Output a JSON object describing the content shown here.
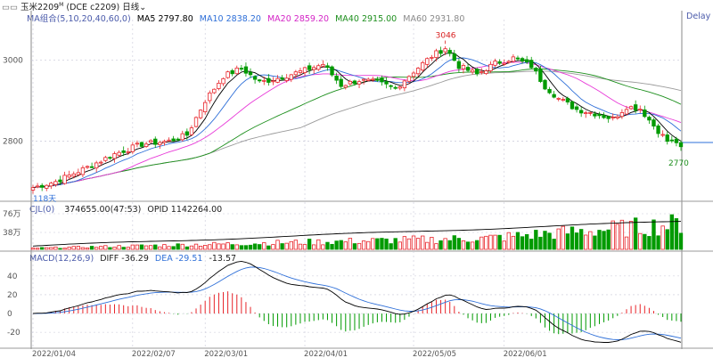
{
  "window": {
    "symbol_label": "玉米2209",
    "symbol_sup": "M",
    "symbol_code": "(DCE c2209)",
    "period_label": "日线",
    "delay_label": "Delay"
  },
  "colors": {
    "up": "#e8242a",
    "down": "#009a00",
    "ma5": "#000000",
    "ma10": "#2e6fd8",
    "ma20": "#e83ad8",
    "ma40": "#1d8f1d",
    "ma60": "#9a9a9a",
    "diff": "#000000",
    "dea": "#2e6fd8",
    "oi": "#000000",
    "grid": "#c8c8d8",
    "axis_text": "#555555"
  },
  "ma_header": {
    "title": "MA组合(5,10,20,40,60,0)",
    "items": [
      {
        "label": "MA5",
        "value": "2797.80"
      },
      {
        "label": "MA10",
        "value": "2838.20"
      },
      {
        "label": "MA20",
        "value": "2859.20"
      },
      {
        "label": "MA40",
        "value": "2915.00"
      },
      {
        "label": "MA60",
        "value": "2931.80"
      }
    ]
  },
  "vol_header": {
    "title": "CJL(0)",
    "volume": "374655.00(47:53)",
    "opid_label": "OPID",
    "opid_value": "1142264.00"
  },
  "macd_header": {
    "title": "MACD(12,26,9)",
    "diff_label": "DIFF",
    "diff_value": "-36.29",
    "dea_label": "DEA",
    "dea_value": "-29.51",
    "macd_value": "-13.57"
  },
  "annotations": {
    "high_label": "3046",
    "low_label": "2770",
    "left_label": "118天"
  },
  "chart_data": [
    {
      "type": "candlestick",
      "title": "",
      "y_ticks": [
        "3000",
        "2800"
      ],
      "ylim": [
        2660,
        3100
      ],
      "x_ticks": [
        "2022/01/04",
        "2022/02/07",
        "2022/03/01",
        "2022/04/01",
        "2022/05/05",
        "2022/06/01"
      ],
      "anchors": [
        {
          "i": 0,
          "p": 2685
        },
        {
          "i": 5,
          "p": 2700
        },
        {
          "i": 12,
          "p": 2735
        },
        {
          "i": 18,
          "p": 2768
        },
        {
          "i": 24,
          "p": 2792
        },
        {
          "i": 30,
          "p": 2800
        },
        {
          "i": 34,
          "p": 2815
        },
        {
          "i": 38,
          "p": 2900
        },
        {
          "i": 42,
          "p": 2960
        },
        {
          "i": 46,
          "p": 2980
        },
        {
          "i": 50,
          "p": 2945
        },
        {
          "i": 54,
          "p": 2955
        },
        {
          "i": 60,
          "p": 2975
        },
        {
          "i": 64,
          "p": 2990
        },
        {
          "i": 68,
          "p": 2938
        },
        {
          "i": 72,
          "p": 2950
        },
        {
          "i": 76,
          "p": 2945
        },
        {
          "i": 80,
          "p": 2930
        },
        {
          "i": 84,
          "p": 2972
        },
        {
          "i": 88,
          "p": 3010
        },
        {
          "i": 91,
          "p": 3030
        },
        {
          "i": 94,
          "p": 2985
        },
        {
          "i": 98,
          "p": 2965
        },
        {
          "i": 102,
          "p": 2992
        },
        {
          "i": 106,
          "p": 3005
        },
        {
          "i": 110,
          "p": 2985
        },
        {
          "i": 113,
          "p": 2935
        },
        {
          "i": 116,
          "p": 2905
        },
        {
          "i": 120,
          "p": 2878
        },
        {
          "i": 124,
          "p": 2868
        },
        {
          "i": 128,
          "p": 2855
        },
        {
          "i": 131,
          "p": 2885
        },
        {
          "i": 134,
          "p": 2880
        },
        {
          "i": 137,
          "p": 2838
        },
        {
          "i": 140,
          "p": 2800
        },
        {
          "i": 142,
          "p": 2798
        },
        {
          "i": 143,
          "p": 2780
        }
      ],
      "bar_count": 144,
      "series": [
        {
          "name": "MA5"
        },
        {
          "name": "MA10"
        },
        {
          "name": "MA20"
        },
        {
          "name": "MA40"
        },
        {
          "name": "MA60"
        }
      ]
    },
    {
      "type": "bar",
      "title": "",
      "y_ticks": [
        "76万",
        "38万"
      ],
      "ylim": [
        0,
        760000
      ],
      "series": [
        {
          "name": "CJL"
        },
        {
          "name": "OPID",
          "values_note": ""
        }
      ]
    },
    {
      "type": "bar",
      "title": "",
      "y_ticks": [
        "40",
        "20",
        "0",
        "-20"
      ],
      "ylim": [
        -36,
        56
      ],
      "series": [
        {
          "name": "DIFF"
        },
        {
          "name": "DEA"
        },
        {
          "name": "MACD"
        }
      ]
    }
  ]
}
